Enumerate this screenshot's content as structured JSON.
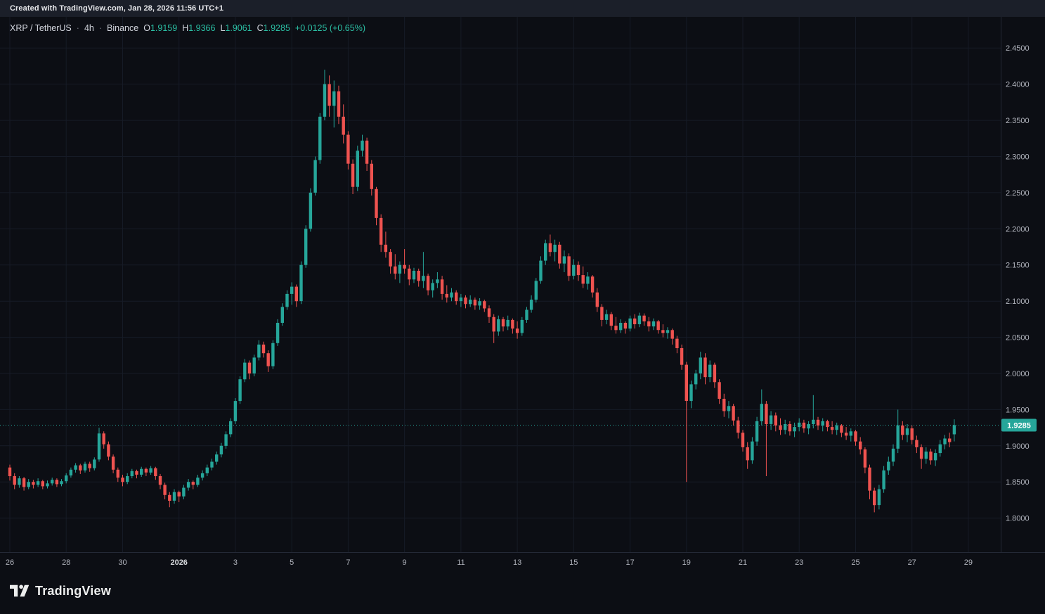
{
  "topbar": {
    "attribution": "Created with TradingView.com, Jan 28, 2026 11:56 UTC+1"
  },
  "legend": {
    "symbol": "XRP / TetherUS",
    "separator": "·",
    "interval": "4h",
    "exchange": "Binance",
    "o_label": "O",
    "o_value": "1.9159",
    "h_label": "H",
    "h_value": "1.9366",
    "l_label": "L",
    "l_value": "1.9061",
    "c_label": "C",
    "c_value": "1.9285",
    "change_value": "+0.0125 (+0.65%)"
  },
  "footer": {
    "brand": "TradingView",
    "logo_icon": "tradingview-mark"
  },
  "chart_data": {
    "type": "candlestick",
    "title": "XRP / TetherUS · 4h · Binance",
    "symbol": "XRP/TetherUS",
    "interval": "4h",
    "exchange": "Binance",
    "last_price": 1.9285,
    "last_price_label": "1.9285",
    "last_ohlc": {
      "open": 1.9159,
      "high": 1.9366,
      "low": 1.9061,
      "close": 1.9285,
      "change": "+0.0125 (+0.65%)"
    },
    "ylim": [
      1.753,
      2.493
    ],
    "grid": true,
    "colors": {
      "up": "#26a69a",
      "down": "#ef5350",
      "grid": "#161b26",
      "bg": "#0c0e14",
      "axis_text": "#b2b5be",
      "axis_line": "#242936",
      "last_price_line": "#26a69a",
      "badge_text": "#ffffff",
      "year_label": "#d8dade"
    },
    "price_ticks": [
      "2.4500",
      "2.4000",
      "2.3500",
      "2.3000",
      "2.2500",
      "2.2000",
      "2.1500",
      "2.1000",
      "2.0500",
      "2.0000",
      "1.9500",
      "1.9000",
      "1.8500",
      "1.8000"
    ],
    "time_labels": [
      {
        "text": "26",
        "i": 0
      },
      {
        "text": "28",
        "i": 12
      },
      {
        "text": "30",
        "i": 24
      },
      {
        "text": "2026",
        "i": 36,
        "major": true
      },
      {
        "text": "3",
        "i": 48
      },
      {
        "text": "5",
        "i": 60
      },
      {
        "text": "7",
        "i": 72
      },
      {
        "text": "9",
        "i": 84
      },
      {
        "text": "11",
        "i": 96
      },
      {
        "text": "13",
        "i": 108
      },
      {
        "text": "15",
        "i": 120
      },
      {
        "text": "17",
        "i": 132
      },
      {
        "text": "19",
        "i": 144
      },
      {
        "text": "21",
        "i": 156
      },
      {
        "text": "23",
        "i": 168
      },
      {
        "text": "25",
        "i": 180
      },
      {
        "text": "27",
        "i": 192
      },
      {
        "text": "29",
        "i": 204
      }
    ],
    "candles": [
      [
        1.87,
        1.874,
        1.852,
        1.858
      ],
      [
        1.858,
        1.862,
        1.84,
        1.846
      ],
      [
        1.846,
        1.858,
        1.842,
        1.855
      ],
      [
        1.855,
        1.857,
        1.838,
        1.843
      ],
      [
        1.843,
        1.854,
        1.84,
        1.85
      ],
      [
        1.85,
        1.853,
        1.841,
        1.846
      ],
      [
        1.846,
        1.855,
        1.843,
        1.851
      ],
      [
        1.851,
        1.853,
        1.84,
        1.844
      ],
      [
        1.844,
        1.852,
        1.841,
        1.848
      ],
      [
        1.848,
        1.856,
        1.845,
        1.853
      ],
      [
        1.853,
        1.855,
        1.843,
        1.847
      ],
      [
        1.847,
        1.854,
        1.844,
        1.851
      ],
      [
        1.851,
        1.862,
        1.848,
        1.859
      ],
      [
        1.859,
        1.87,
        1.856,
        1.867
      ],
      [
        1.867,
        1.876,
        1.863,
        1.873
      ],
      [
        1.873,
        1.875,
        1.861,
        1.866
      ],
      [
        1.866,
        1.878,
        1.863,
        1.875
      ],
      [
        1.875,
        1.878,
        1.864,
        1.869
      ],
      [
        1.869,
        1.884,
        1.866,
        1.881
      ],
      [
        1.881,
        1.925,
        1.878,
        1.917
      ],
      [
        1.917,
        1.92,
        1.896,
        1.902
      ],
      [
        1.902,
        1.906,
        1.88,
        1.885
      ],
      [
        1.885,
        1.888,
        1.862,
        1.867
      ],
      [
        1.867,
        1.87,
        1.85,
        1.856
      ],
      [
        1.856,
        1.86,
        1.844,
        1.85
      ],
      [
        1.85,
        1.862,
        1.847,
        1.858
      ],
      [
        1.858,
        1.868,
        1.855,
        1.865
      ],
      [
        1.865,
        1.867,
        1.855,
        1.86
      ],
      [
        1.86,
        1.871,
        1.857,
        1.868
      ],
      [
        1.868,
        1.87,
        1.858,
        1.863
      ],
      [
        1.863,
        1.872,
        1.86,
        1.869
      ],
      [
        1.869,
        1.871,
        1.853,
        1.858
      ],
      [
        1.858,
        1.861,
        1.84,
        1.846
      ],
      [
        1.846,
        1.849,
        1.826,
        1.832
      ],
      [
        1.832,
        1.836,
        1.815,
        1.824
      ],
      [
        1.824,
        1.84,
        1.82,
        1.836
      ],
      [
        1.836,
        1.838,
        1.822,
        1.83
      ],
      [
        1.83,
        1.846,
        1.826,
        1.842
      ],
      [
        1.842,
        1.854,
        1.838,
        1.85
      ],
      [
        1.85,
        1.852,
        1.84,
        1.846
      ],
      [
        1.846,
        1.86,
        1.843,
        1.856
      ],
      [
        1.856,
        1.866,
        1.852,
        1.862
      ],
      [
        1.862,
        1.874,
        1.858,
        1.87
      ],
      [
        1.87,
        1.882,
        1.866,
        1.878
      ],
      [
        1.878,
        1.892,
        1.874,
        1.888
      ],
      [
        1.888,
        1.904,
        1.884,
        1.9
      ],
      [
        1.9,
        1.92,
        1.896,
        1.916
      ],
      [
        1.916,
        1.938,
        1.912,
        1.934
      ],
      [
        1.934,
        1.966,
        1.93,
        1.962
      ],
      [
        1.962,
        1.996,
        1.958,
        1.992
      ],
      [
        1.992,
        2.02,
        1.988,
        2.015
      ],
      [
        2.015,
        2.018,
        1.992,
        2.0
      ],
      [
        2.0,
        2.026,
        1.996,
        2.022
      ],
      [
        2.022,
        2.046,
        2.018,
        2.04
      ],
      [
        2.04,
        2.044,
        2.022,
        2.028
      ],
      [
        2.028,
        2.032,
        2.002,
        2.01
      ],
      [
        2.01,
        2.046,
        2.006,
        2.042
      ],
      [
        2.042,
        2.075,
        2.038,
        2.07
      ],
      [
        2.07,
        2.097,
        2.066,
        2.092
      ],
      [
        2.092,
        2.115,
        2.088,
        2.11
      ],
      [
        2.11,
        2.126,
        2.095,
        2.12
      ],
      [
        2.12,
        2.123,
        2.092,
        2.1
      ],
      [
        2.1,
        2.155,
        2.096,
        2.15
      ],
      [
        2.15,
        2.205,
        2.146,
        2.2
      ],
      [
        2.2,
        2.256,
        2.196,
        2.25
      ],
      [
        2.25,
        2.3,
        2.246,
        2.295
      ],
      [
        2.295,
        2.36,
        2.29,
        2.355
      ],
      [
        2.355,
        2.42,
        2.35,
        2.4
      ],
      [
        2.4,
        2.412,
        2.355,
        2.37
      ],
      [
        2.37,
        2.405,
        2.34,
        2.39
      ],
      [
        2.39,
        2.398,
        2.345,
        2.355
      ],
      [
        2.355,
        2.372,
        2.318,
        2.33
      ],
      [
        2.33,
        2.335,
        2.282,
        2.29
      ],
      [
        2.29,
        2.296,
        2.248,
        2.258
      ],
      [
        2.258,
        2.315,
        2.252,
        2.308
      ],
      [
        2.308,
        2.33,
        2.3,
        2.322
      ],
      [
        2.322,
        2.326,
        2.28,
        2.29
      ],
      [
        2.29,
        2.295,
        2.246,
        2.255
      ],
      [
        2.255,
        2.258,
        2.205,
        2.215
      ],
      [
        2.215,
        2.22,
        2.168,
        2.178
      ],
      [
        2.178,
        2.196,
        2.16,
        2.168
      ],
      [
        2.168,
        2.172,
        2.138,
        2.148
      ],
      [
        2.148,
        2.165,
        2.13,
        2.138
      ],
      [
        2.138,
        2.155,
        2.125,
        2.15
      ],
      [
        2.15,
        2.172,
        2.138,
        2.145
      ],
      [
        2.145,
        2.15,
        2.122,
        2.13
      ],
      [
        2.13,
        2.146,
        2.125,
        2.142
      ],
      [
        2.142,
        2.145,
        2.12,
        2.128
      ],
      [
        2.128,
        2.168,
        2.118,
        2.135
      ],
      [
        2.135,
        2.138,
        2.108,
        2.115
      ],
      [
        2.115,
        2.13,
        2.105,
        2.125
      ],
      [
        2.125,
        2.14,
        2.118,
        2.13
      ],
      [
        2.13,
        2.135,
        2.102,
        2.11
      ],
      [
        2.11,
        2.122,
        2.098,
        2.105
      ],
      [
        2.105,
        2.118,
        2.1,
        2.112
      ],
      [
        2.112,
        2.115,
        2.095,
        2.1
      ],
      [
        2.1,
        2.11,
        2.092,
        2.105
      ],
      [
        2.105,
        2.108,
        2.09,
        2.096
      ],
      [
        2.096,
        2.108,
        2.092,
        2.102
      ],
      [
        2.102,
        2.105,
        2.088,
        2.094
      ],
      [
        2.094,
        2.104,
        2.088,
        2.1
      ],
      [
        2.1,
        2.102,
        2.085,
        2.09
      ],
      [
        2.09,
        2.094,
        2.07,
        2.078
      ],
      [
        2.078,
        2.082,
        2.042,
        2.058
      ],
      [
        2.058,
        2.08,
        2.052,
        2.075
      ],
      [
        2.075,
        2.078,
        2.058,
        2.065
      ],
      [
        2.065,
        2.08,
        2.06,
        2.074
      ],
      [
        2.074,
        2.076,
        2.055,
        2.062
      ],
      [
        2.062,
        2.072,
        2.048,
        2.056
      ],
      [
        2.056,
        2.078,
        2.052,
        2.074
      ],
      [
        2.074,
        2.092,
        2.07,
        2.088
      ],
      [
        2.088,
        2.108,
        2.084,
        2.102
      ],
      [
        2.102,
        2.132,
        2.098,
        2.128
      ],
      [
        2.128,
        2.162,
        2.124,
        2.156
      ],
      [
        2.156,
        2.185,
        2.15,
        2.18
      ],
      [
        2.18,
        2.192,
        2.162,
        2.168
      ],
      [
        2.168,
        2.185,
        2.155,
        2.178
      ],
      [
        2.178,
        2.182,
        2.145,
        2.152
      ],
      [
        2.152,
        2.17,
        2.14,
        2.162
      ],
      [
        2.162,
        2.166,
        2.128,
        2.135
      ],
      [
        2.135,
        2.158,
        2.13,
        2.15
      ],
      [
        2.15,
        2.155,
        2.128,
        2.136
      ],
      [
        2.136,
        2.148,
        2.118,
        2.124
      ],
      [
        2.124,
        2.14,
        2.116,
        2.134
      ],
      [
        2.134,
        2.136,
        2.105,
        2.112
      ],
      [
        2.112,
        2.118,
        2.085,
        2.092
      ],
      [
        2.092,
        2.096,
        2.065,
        2.074
      ],
      [
        2.074,
        2.088,
        2.068,
        2.082
      ],
      [
        2.082,
        2.085,
        2.06,
        2.066
      ],
      [
        2.066,
        2.078,
        2.055,
        2.06
      ],
      [
        2.06,
        2.075,
        2.056,
        2.07
      ],
      [
        2.07,
        2.072,
        2.055,
        2.062
      ],
      [
        2.062,
        2.08,
        2.058,
        2.076
      ],
      [
        2.076,
        2.082,
        2.062,
        2.068
      ],
      [
        2.068,
        2.084,
        2.064,
        2.08
      ],
      [
        2.08,
        2.083,
        2.066,
        2.072
      ],
      [
        2.072,
        2.078,
        2.058,
        2.065
      ],
      [
        2.065,
        2.076,
        2.06,
        2.072
      ],
      [
        2.072,
        2.074,
        2.055,
        2.06
      ],
      [
        2.06,
        2.068,
        2.05,
        2.056
      ],
      [
        2.056,
        2.064,
        2.048,
        2.06
      ],
      [
        2.06,
        2.062,
        2.04,
        2.048
      ],
      [
        2.048,
        2.052,
        2.028,
        2.035
      ],
      [
        2.035,
        2.04,
        2.005,
        2.012
      ],
      [
        2.012,
        2.016,
        1.85,
        1.962
      ],
      [
        1.962,
        1.99,
        1.952,
        1.985
      ],
      [
        1.985,
        2.005,
        1.978,
        2.0
      ],
      [
        2.0,
        2.03,
        1.992,
        2.022
      ],
      [
        2.022,
        2.028,
        1.985,
        1.995
      ],
      [
        1.995,
        2.018,
        1.988,
        2.012
      ],
      [
        2.012,
        2.015,
        1.98,
        1.988
      ],
      [
        1.988,
        1.992,
        1.958,
        1.965
      ],
      [
        1.965,
        1.972,
        1.94,
        1.948
      ],
      [
        1.948,
        1.962,
        1.938,
        1.955
      ],
      [
        1.955,
        1.958,
        1.928,
        1.935
      ],
      [
        1.935,
        1.94,
        1.91,
        1.918
      ],
      [
        1.918,
        1.922,
        1.892,
        1.898
      ],
      [
        1.898,
        1.905,
        1.868,
        1.88
      ],
      [
        1.88,
        1.912,
        1.875,
        1.906
      ],
      [
        1.906,
        1.94,
        1.9,
        1.934
      ],
      [
        1.934,
        1.978,
        1.928,
        1.958
      ],
      [
        1.958,
        1.962,
        1.858,
        1.93
      ],
      [
        1.93,
        1.948,
        1.922,
        1.942
      ],
      [
        1.942,
        1.946,
        1.92,
        1.928
      ],
      [
        1.928,
        1.938,
        1.915,
        1.922
      ],
      [
        1.922,
        1.936,
        1.916,
        1.93
      ],
      [
        1.93,
        1.934,
        1.914,
        1.92
      ],
      [
        1.92,
        1.932,
        1.912,
        1.926
      ],
      [
        1.926,
        1.938,
        1.92,
        1.932
      ],
      [
        1.932,
        1.936,
        1.918,
        1.924
      ],
      [
        1.924,
        1.934,
        1.916,
        1.93
      ],
      [
        1.93,
        1.97,
        1.924,
        1.936
      ],
      [
        1.936,
        1.94,
        1.922,
        1.928
      ],
      [
        1.928,
        1.938,
        1.92,
        1.934
      ],
      [
        1.934,
        1.936,
        1.92,
        1.926
      ],
      [
        1.926,
        1.934,
        1.916,
        1.922
      ],
      [
        1.922,
        1.932,
        1.915,
        1.928
      ],
      [
        1.928,
        1.93,
        1.912,
        1.918
      ],
      [
        1.918,
        1.926,
        1.908,
        1.914
      ],
      [
        1.914,
        1.924,
        1.906,
        1.92
      ],
      [
        1.92,
        1.922,
        1.9,
        1.906
      ],
      [
        1.906,
        1.912,
        1.888,
        1.895
      ],
      [
        1.895,
        1.898,
        1.862,
        1.87
      ],
      [
        1.87,
        1.874,
        1.826,
        1.838
      ],
      [
        1.838,
        1.842,
        1.808,
        1.818
      ],
      [
        1.818,
        1.846,
        1.812,
        1.84
      ],
      [
        1.84,
        1.872,
        1.835,
        1.866
      ],
      [
        1.866,
        1.885,
        1.86,
        1.878
      ],
      [
        1.878,
        1.902,
        1.872,
        1.896
      ],
      [
        1.896,
        1.95,
        1.89,
        1.928
      ],
      [
        1.928,
        1.934,
        1.908,
        1.915
      ],
      [
        1.915,
        1.93,
        1.905,
        1.924
      ],
      [
        1.924,
        1.928,
        1.902,
        1.908
      ],
      [
        1.908,
        1.914,
        1.89,
        1.898
      ],
      [
        1.898,
        1.902,
        1.868,
        1.882
      ],
      [
        1.882,
        1.898,
        1.875,
        1.892
      ],
      [
        1.892,
        1.896,
        1.874,
        1.88
      ],
      [
        1.88,
        1.895,
        1.872,
        1.89
      ],
      [
        1.89,
        1.908,
        1.885,
        1.902
      ],
      [
        1.902,
        1.915,
        1.895,
        1.91
      ],
      [
        1.91,
        1.918,
        1.898,
        1.905
      ],
      [
        1.9159,
        1.9366,
        1.9061,
        1.9285
      ]
    ]
  }
}
